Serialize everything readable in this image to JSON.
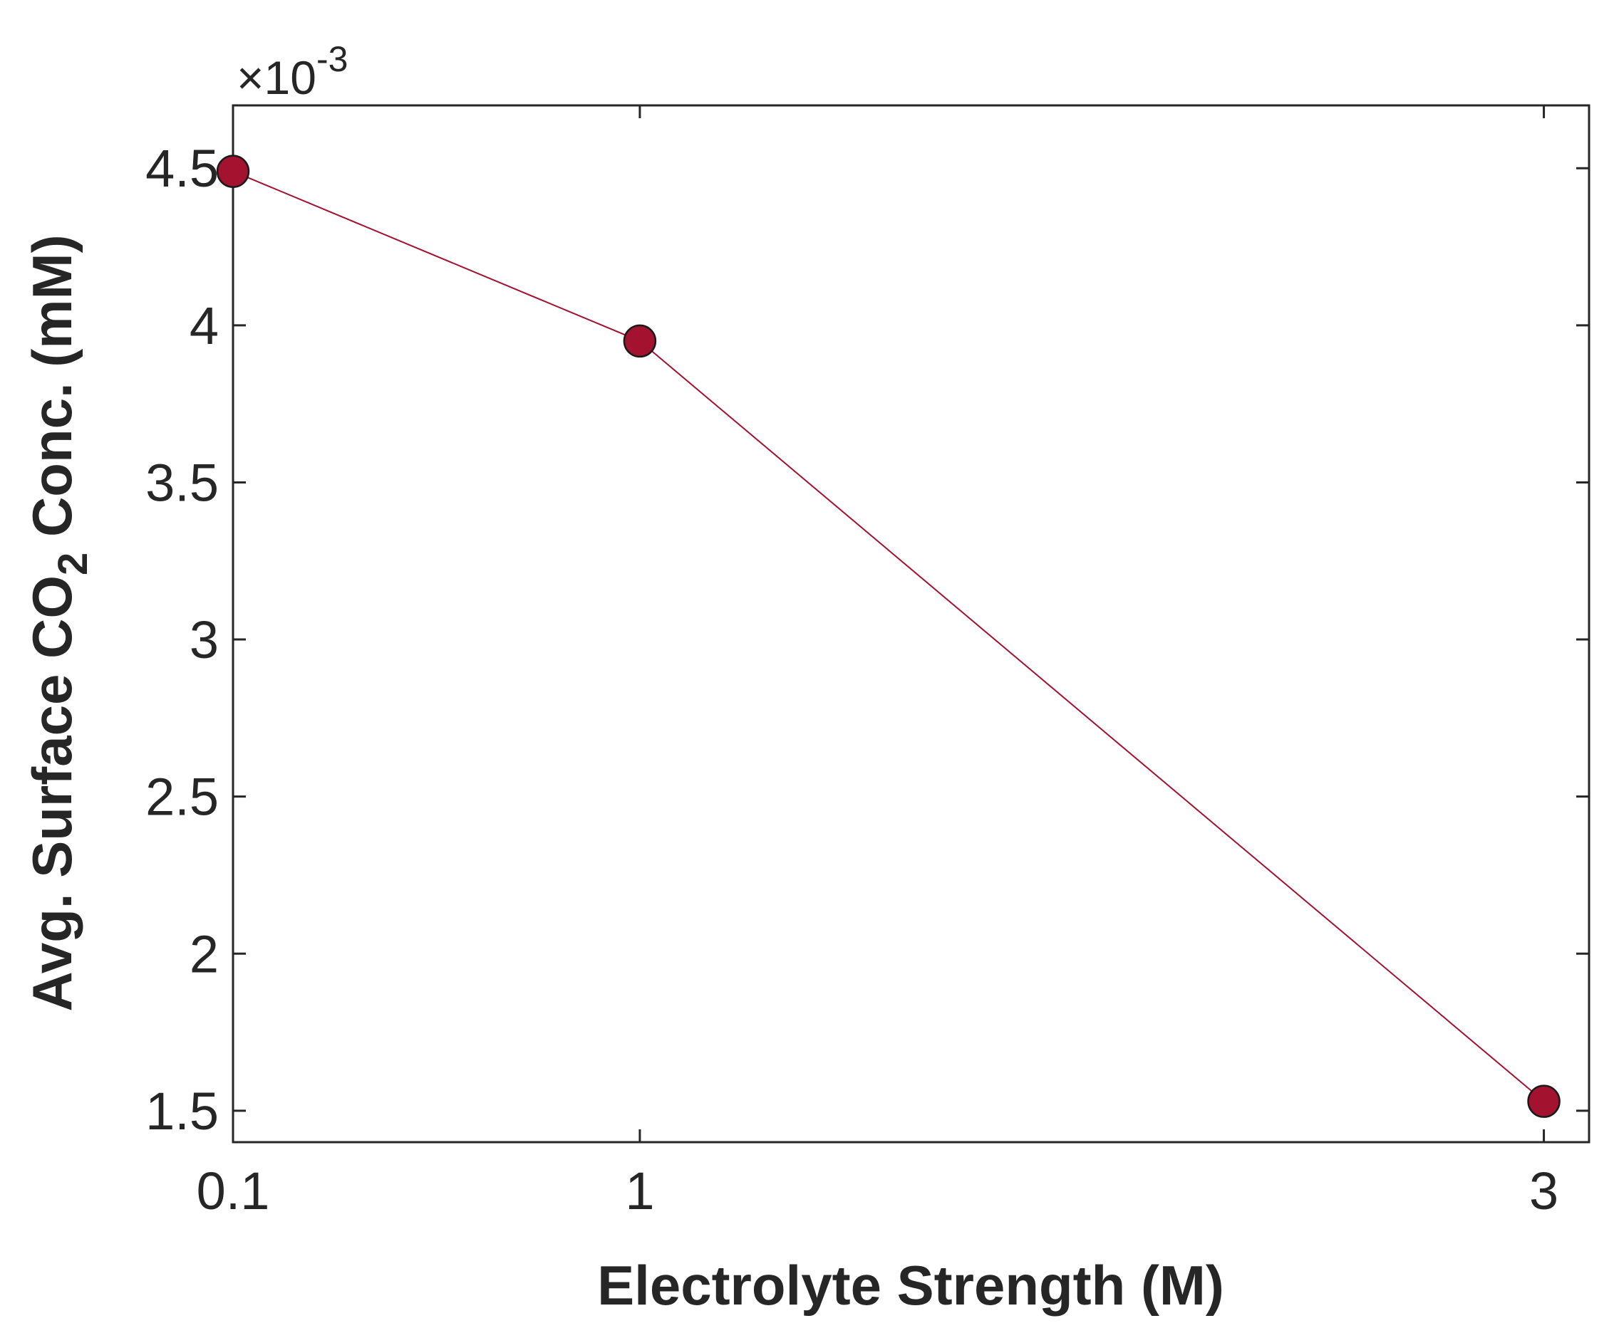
{
  "chart_data": {
    "type": "line",
    "title": "",
    "xlabel": "Electrolyte Strength (M)",
    "ylabel": {
      "prefix": "Avg. Surface CO",
      "subscript": "2",
      "suffix": " Conc. (mM)"
    },
    "y_exponent": {
      "times": "×10",
      "power": "-3"
    },
    "x_ticks": [
      "0.1",
      "1",
      "3"
    ],
    "y_ticks": [
      "1.5",
      "2",
      "2.5",
      "3",
      "3.5",
      "4",
      "4.5"
    ],
    "y_tick_values": [
      1.5,
      2,
      2.5,
      3,
      3.5,
      4,
      4.5
    ],
    "xlim": [
      0.1,
      3.1
    ],
    "ylim": [
      1.4,
      4.7
    ],
    "series": [
      {
        "x": [
          0.1,
          1,
          3
        ],
        "y": [
          4.49,
          3.95,
          1.53
        ],
        "color": "#a3122f",
        "marker": "circle"
      }
    ],
    "grid": false
  }
}
